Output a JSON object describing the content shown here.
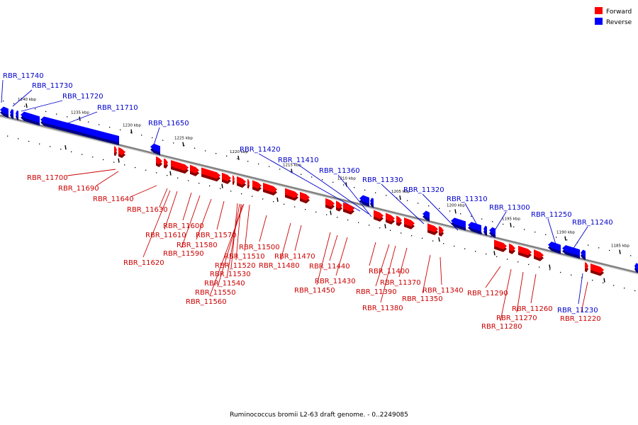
{
  "caption": "Ruminococcus bromii L2-63 draft genome. - 0..2249085",
  "legend": [
    {
      "label": "Forward",
      "color": "#ff0000"
    },
    {
      "label": "Reverse",
      "color": "#0000ff"
    }
  ],
  "scale_ticks": [
    "1240 kbp",
    "1235 kbp",
    "1230 kbp",
    "1225 kbp",
    "1220 kbp",
    "1215 kbp",
    "1210 kbp",
    "1205 kbp",
    "1200 kbp",
    "1195 kbp",
    "1190 kbp",
    "1185 kbp"
  ],
  "reverse_genes": [
    {
      "label": "RBR_11740"
    },
    {
      "label": "RBR_11730"
    },
    {
      "label": "RBR_11720"
    },
    {
      "label": "RBR_11710"
    },
    {
      "label": "RBR_11650"
    },
    {
      "label": "RBR_11420"
    },
    {
      "label": "RBR_11410"
    },
    {
      "label": "RBR_11360"
    },
    {
      "label": "RBR_11330"
    },
    {
      "label": "RBR_11320"
    },
    {
      "label": "RBR_11310"
    },
    {
      "label": "RBR_11300"
    },
    {
      "label": "RBR_11250"
    },
    {
      "label": "RBR_11240"
    },
    {
      "label": "RBR_11230"
    }
  ],
  "forward_genes": [
    {
      "label": "RBR_11700"
    },
    {
      "label": "RBR_11690"
    },
    {
      "label": "RBR_11640"
    },
    {
      "label": "RBR_11630"
    },
    {
      "label": "RBR_11620"
    },
    {
      "label": "RBR_11610"
    },
    {
      "label": "RBR_11600"
    },
    {
      "label": "RBR_11590"
    },
    {
      "label": "RBR_11580"
    },
    {
      "label": "RBR_11570"
    },
    {
      "label": "RBR_11560"
    },
    {
      "label": "RBR_11550"
    },
    {
      "label": "RBR_11540"
    },
    {
      "label": "RBR_11530"
    },
    {
      "label": "RBR_11520"
    },
    {
      "label": "RBR_11510"
    },
    {
      "label": "RBR_11500"
    },
    {
      "label": "RBR_11480"
    },
    {
      "label": "RBR_11470"
    },
    {
      "label": "RBR_11450"
    },
    {
      "label": "RBR_11440"
    },
    {
      "label": "RBR_11430"
    },
    {
      "label": "RBR_11400"
    },
    {
      "label": "RBR_11390"
    },
    {
      "label": "RBR_11380"
    },
    {
      "label": "RBR_11370"
    },
    {
      "label": "RBR_11350"
    },
    {
      "label": "RBR_11340"
    },
    {
      "label": "RBR_11290"
    },
    {
      "label": "RBR_11280"
    },
    {
      "label": "RBR_11270"
    },
    {
      "label": "RBR_11260"
    },
    {
      "label": "RBR_11220"
    }
  ]
}
